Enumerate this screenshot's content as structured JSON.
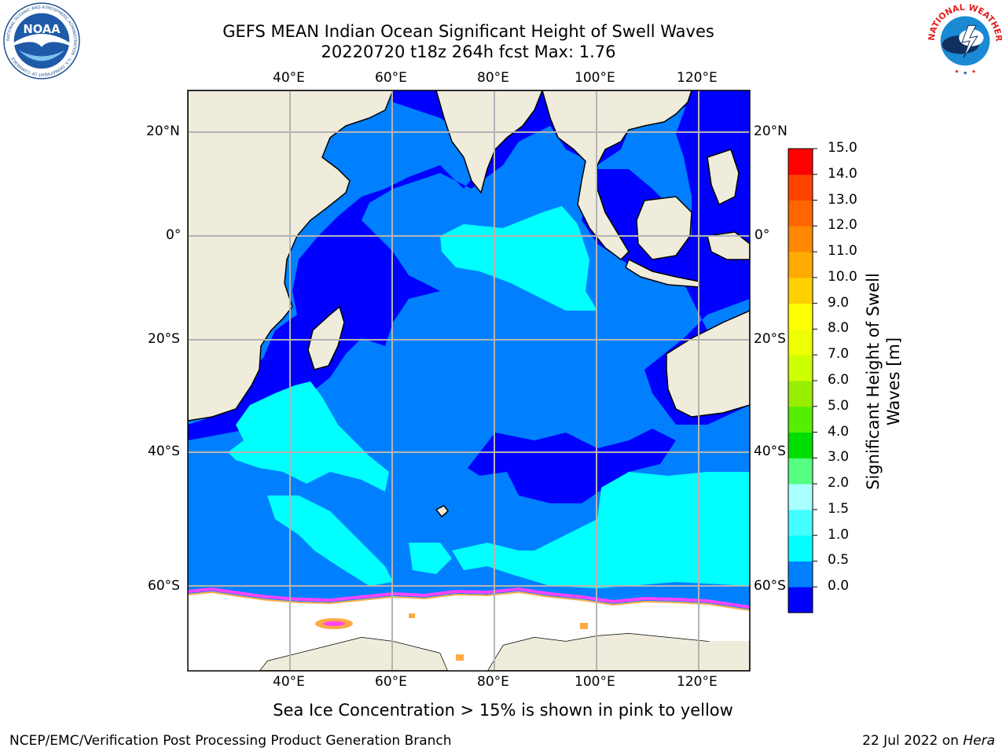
{
  "title": {
    "line1": "GEFS MEAN Indian Ocean Significant Height of Swell Waves",
    "line2": "20220720 t18z 264h fcst   Max: 1.76"
  },
  "map": {
    "lon_labels_top": [
      "40°E",
      "60°E",
      "80°E",
      "100°E",
      "120°E"
    ],
    "lon_labels_bottom": [
      "40°E",
      "60°E",
      "80°E",
      "100°E",
      "120°E"
    ],
    "lat_labels_left": [
      "20°N",
      "0°",
      "20°S",
      "40°S",
      "60°S"
    ],
    "lat_labels_right": [
      "20°N",
      "0°",
      "20°S",
      "40°S",
      "60°S"
    ],
    "colors": {
      "land": "#efecdc",
      "ice": "#ffffff",
      "grid": "#b4b4b4",
      "ice_edge": [
        "#ff44ff",
        "#ffaa44",
        "#ffdd55"
      ]
    }
  },
  "colorbar": {
    "title": "Significant Height of Swell Waves [m]",
    "labels": [
      "15.0",
      "14.0",
      "13.0",
      "12.0",
      "11.0",
      "10.0",
      "9.0",
      "8.0",
      "7.0",
      "6.0",
      "5.0",
      "4.0",
      "3.0",
      "2.0",
      "1.5",
      "1.0",
      "0.5",
      "0.0"
    ],
    "colors": [
      "#0000ff",
      "#0080ff",
      "#00ffff",
      "#44ffff",
      "#aaffff",
      "#55ff80",
      "#00dd00",
      "#55ee00",
      "#99ee00",
      "#ccff00",
      "#eeff00",
      "#ffff00",
      "#ffd000",
      "#ffaa00",
      "#ff8800",
      "#ff6600",
      "#ff4400",
      "#ff0000"
    ]
  },
  "note": "Sea Ice Concentration > 15% is shown in pink to yellow",
  "footer": {
    "left": "NCEP/EMC/Verification Post Processing Product Generation Branch",
    "date": "22 Jul 2022 on ",
    "host": "Hera"
  },
  "logos": {
    "noaa_text": "NOAA",
    "noaa_ring": "NATIONAL OCEANIC AND ATMOSPHERIC ADMINISTRATION · U.S. DEPARTMENT OF COMMERCE",
    "nws_ring": "NATIONAL WEATHER SERVICE"
  }
}
